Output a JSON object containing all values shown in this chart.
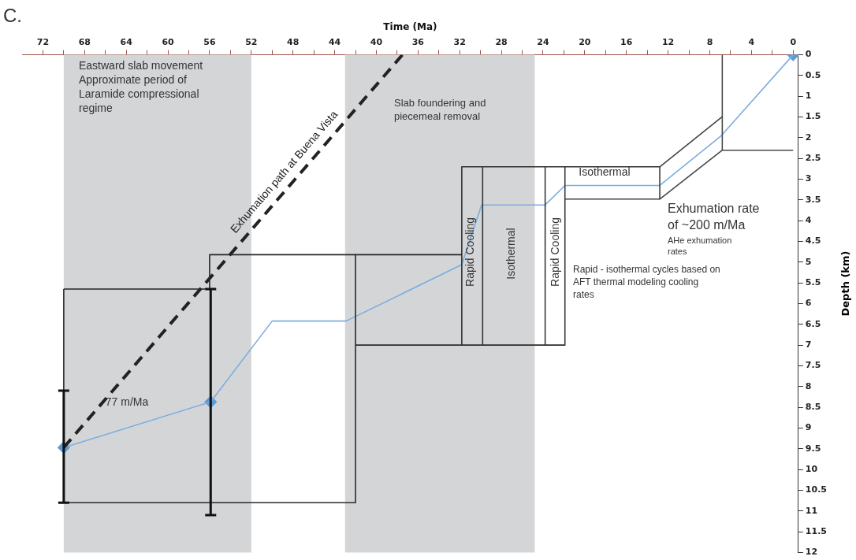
{
  "chart_data": {
    "type": "line",
    "xlabel": "Time (Ma)",
    "ylabel": "Depth (km)",
    "xlim": [
      74,
      -0.5
    ],
    "ylim": [
      12,
      0
    ],
    "xticks": [
      72,
      {
        "value": 70,
        "label": null
      },
      68,
      {
        "value": 66,
        "label": null
      },
      64,
      {
        "value": 62,
        "label": null
      },
      60,
      {
        "value": 58,
        "label": null
      },
      56,
      {
        "value": 54,
        "label": null
      },
      52,
      {
        "value": 50,
        "label": null
      },
      48,
      {
        "value": 46,
        "label": null
      },
      44,
      {
        "value": 42,
        "label": null
      },
      40,
      {
        "value": 38,
        "label": null
      },
      36,
      {
        "value": 34,
        "label": null
      },
      32,
      {
        "value": 30,
        "label": null
      },
      28,
      {
        "value": 26,
        "label": null
      },
      24,
      {
        "value": 22,
        "label": null
      },
      20,
      {
        "value": 18,
        "label": null
      },
      16,
      {
        "value": 14,
        "label": null
      },
      12,
      {
        "value": 10,
        "label": null
      },
      8,
      {
        "value": 6,
        "label": null
      },
      4,
      {
        "value": 2,
        "label": null
      },
      0
    ],
    "yticks": [
      0,
      0.5,
      1,
      1.5,
      2,
      2.5,
      3,
      3.5,
      4,
      4.5,
      5,
      5.5,
      6,
      6.5,
      7,
      7.5,
      8,
      8.5,
      9,
      9.5,
      10,
      10.5,
      11,
      11.5,
      12
    ],
    "grid": false,
    "legend": false,
    "marker": "none",
    "bands": [
      {
        "axis": "x",
        "from": 70,
        "to": 52,
        "color": "#d4d5d7"
      },
      {
        "axis": "x",
        "from": 43,
        "to": 24.8,
        "color": "#d4d5d7"
      }
    ],
    "series": [
      {
        "color": "#262626",
        "x": [
          70,
          56,
          56,
          31.8
        ],
        "values": [
          5.65,
          5.65,
          4.82,
          4.82
        ]
      },
      {
        "color": "#292929",
        "x": [
          42,
          42,
          70,
          70
        ],
        "values": [
          4.82,
          10.8,
          10.8,
          5.65
        ]
      },
      {
        "color": "#2c2c2c",
        "x": [
          42,
          21.9
        ],
        "values": [
          7.0,
          7.0
        ]
      },
      {
        "color": "#2f2f2f",
        "x": [
          31.8,
          12.8
        ],
        "values": [
          2.7,
          2.7
        ]
      },
      {
        "color": "#323232",
        "x": [
          31.8,
          31.8
        ],
        "values": [
          2.7,
          7.0
        ]
      },
      {
        "color": "#353535",
        "x": [
          29.8,
          29.8
        ],
        "values": [
          2.7,
          7.0
        ]
      },
      {
        "color": "#383838",
        "x": [
          23.8,
          23.8
        ],
        "values": [
          2.7,
          7.0
        ]
      },
      {
        "color": "#3b3b3b",
        "x": [
          21.9,
          21.9
        ],
        "values": [
          2.7,
          7.0
        ]
      },
      {
        "color": "#3e3e3e",
        "x": [
          12.8,
          12.8
        ],
        "values": [
          2.7,
          3.48
        ]
      },
      {
        "color": "#414141",
        "x": [
          21.9,
          12.8
        ],
        "values": [
          3.48,
          3.48
        ]
      },
      {
        "color": "#444444",
        "x": [
          12.8,
          6.8
        ],
        "values": [
          2.7,
          1.49
        ]
      },
      {
        "color": "#474747",
        "x": [
          12.8,
          6.8
        ],
        "values": [
          3.48,
          2.3
        ]
      },
      {
        "color": "#4a4a4a",
        "x": [
          6.8,
          6.8,
          0
        ],
        "values": [
          0,
          2.3,
          2.3
        ]
      },
      {
        "name": "Exhumation path at Buena Vista",
        "color": "#222222",
        "line_style": "dashed",
        "x": [
          70,
          37.5
        ],
        "values": [
          9.47,
          0
        ]
      },
      {
        "color": "#7aaee0",
        "x": [
          0,
          6.9,
          12.8,
          21.9,
          23.8,
          29.9,
          31.8,
          42.9,
          50.0,
          55.9,
          70.0
        ],
        "values": [
          0,
          1.95,
          3.15,
          3.15,
          3.62,
          3.62,
          5.06,
          6.42,
          6.42,
          8.37,
          9.47
        ]
      },
      {
        "type": "scatter",
        "color": "#5b9bd5",
        "marker": "diamond",
        "x": [
          0,
          55.9,
          70.0
        ],
        "values": [
          0,
          8.37,
          9.47
        ],
        "errors": [
          null,
          [
            5.65,
            11.1
          ],
          [
            8.1,
            10.8
          ]
        ]
      }
    ],
    "annotations": [
      "C.",
      "Eastward slab movement\nApproximate period of\nLaramide compressional\nregime",
      "Slab foundering and\npiecemeal removal",
      {
        "text": "77 m/Ma",
        "x": 66,
        "y": 8.25
      },
      "Exhumation rate\nof ~200 m/Ma",
      "AHe exhumation\nrates",
      "Rapid - isothermal cycles based on\nAFT thermal modeling cooling\nrates",
      "Rapid Cooling",
      "Isothermal",
      "Rapid Cooling",
      "Isothermal"
    ]
  }
}
